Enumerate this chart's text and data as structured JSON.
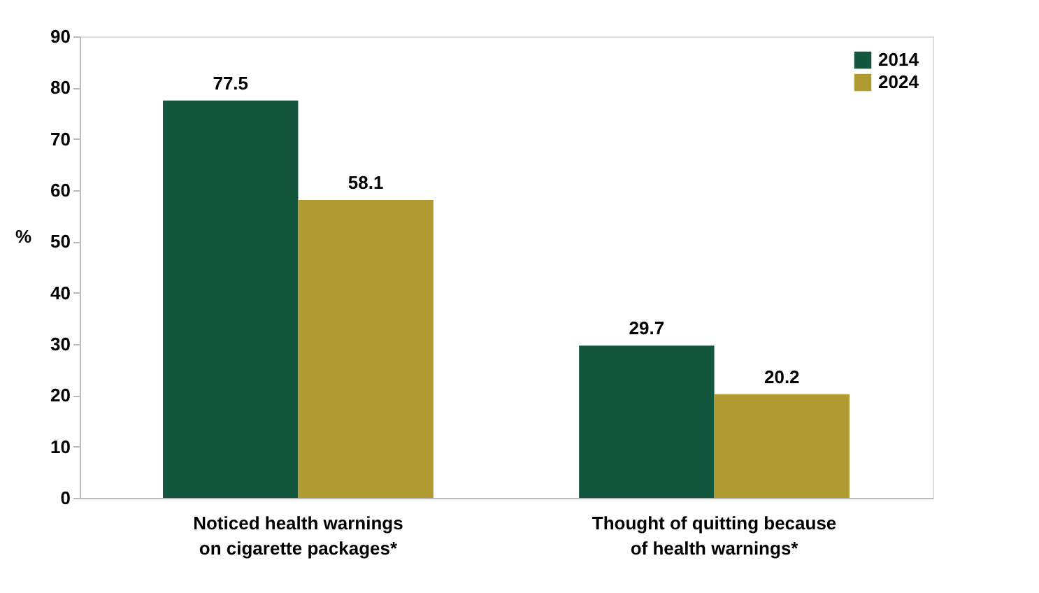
{
  "chart_data": {
    "type": "bar",
    "ylabel": "%",
    "categories": [
      "Noticed health warnings\non cigarette packages*",
      "Thought of quitting because\nof health warnings*"
    ],
    "series": [
      {
        "name": "2014",
        "color": "#14573f",
        "values": [
          77.5,
          29.7
        ]
      },
      {
        "name": "2024",
        "color": "#b09a32",
        "values": [
          58.1,
          20.2
        ]
      }
    ],
    "ylim": [
      0,
      90
    ],
    "yticks": [
      0,
      10,
      20,
      30,
      40,
      50,
      60,
      70,
      80,
      90
    ],
    "data_labels": true,
    "grid": false,
    "legend": "top right"
  }
}
